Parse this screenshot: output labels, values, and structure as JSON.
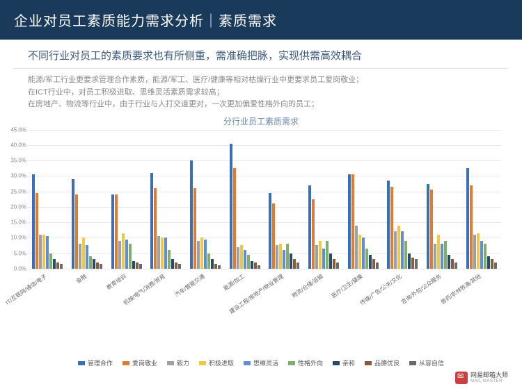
{
  "header_title": "企业对员工素质能力需求分析｜素质需求",
  "subtitle": "不同行业对员工的素质要求也有所侧重，需准确把脉，实现供需高效耦合",
  "desc_line1": "能源/军工行业更要求管理合作素质，能源/军工、医疗/健康等相对枯燥行业中更要求员工爱岗敬业；",
  "desc_line2": "在ICT行业中，对员工积极进取、思维灵活素质需求较高；",
  "desc_line3": "在房地产、物流等行业中，由于行业与人打交道更对，一次更加偏爱性格外向的员工；",
  "chart": {
    "title": "分行业员工素质需求",
    "type": "grouped-bar",
    "ylabel_suffix": "%",
    "ylim": [
      0,
      45
    ],
    "ytick_step": 5,
    "background_color": "#ffffff",
    "grid_color": "#e8e8e8",
    "categories": [
      "IT/互联网/通信/电子",
      "金融",
      "教育培训",
      "机械/电气/消费/贸易",
      "汽车/智能交通",
      "能源/加工",
      "建设工程/房地产/物业管理",
      "物流/仓储/运输",
      "医疗/卫生/健康",
      "传媒/广告/公关/文化",
      "咨询/外包/公众服务",
      "普药/农林牧渔/其他"
    ],
    "series": [
      {
        "name": "管理合作",
        "color": "#3a6fb7"
      },
      {
        "name": "爱岗敬业",
        "color": "#e37a33"
      },
      {
        "name": "毅力",
        "color": "#9aa0a6"
      },
      {
        "name": "积极进取",
        "color": "#f2c744"
      },
      {
        "name": "思维灵活",
        "color": "#5b8fd6"
      },
      {
        "name": "性格外向",
        "color": "#7fb069"
      },
      {
        "name": "亲和",
        "color": "#2a4a6d"
      },
      {
        "name": "品德优良",
        "color": "#8a5a3a"
      },
      {
        "name": "从容自信",
        "color": "#6a6a6a"
      }
    ],
    "values": [
      [
        30.5,
        24.5,
        11.0,
        11.0,
        10.5,
        5.0,
        3.0,
        2.0,
        1.5
      ],
      [
        29.0,
        24.0,
        8.0,
        10.0,
        7.5,
        4.0,
        3.0,
        2.0,
        1.5
      ],
      [
        24.0,
        24.0,
        9.0,
        11.5,
        9.5,
        8.0,
        2.5,
        2.0,
        1.5
      ],
      [
        31.0,
        26.0,
        10.5,
        10.0,
        10.0,
        6.0,
        3.0,
        2.0,
        1.5
      ],
      [
        35.0,
        26.0,
        9.0,
        10.0,
        9.5,
        5.0,
        3.0,
        1.5,
        1.0
      ],
      [
        40.5,
        32.5,
        7.0,
        7.5,
        6.0,
        4.5,
        2.5,
        2.0,
        1.0
      ],
      [
        24.5,
        21.0,
        7.5,
        8.0,
        6.0,
        8.0,
        5.0,
        3.0,
        2.0
      ],
      [
        27.0,
        22.5,
        7.5,
        9.0,
        6.5,
        9.0,
        5.0,
        3.0,
        2.0
      ],
      [
        30.5,
        30.5,
        14.0,
        11.0,
        10.0,
        6.5,
        4.5,
        3.0,
        2.0
      ],
      [
        28.5,
        26.5,
        12.0,
        14.0,
        12.0,
        9.0,
        5.0,
        3.5,
        3.0
      ],
      [
        27.5,
        25.5,
        8.0,
        11.0,
        8.0,
        9.0,
        4.5,
        3.0,
        2.0
      ],
      [
        32.5,
        27.0,
        11.0,
        11.5,
        9.0,
        8.0,
        4.0,
        3.0,
        2.0
      ]
    ]
  },
  "logo": {
    "name": "网易邮箱大师",
    "sub": "MAIL MASTER"
  }
}
